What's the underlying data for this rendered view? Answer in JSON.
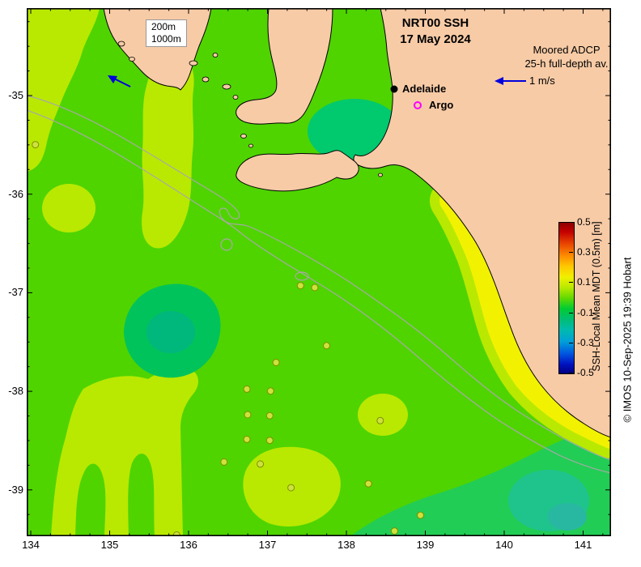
{
  "title": {
    "line1": "NRT00 SSH",
    "line2": "17 May 2024"
  },
  "annotations": {
    "adcp_line1": "Moored ADCP",
    "adcp_line2": "25-h full-depth av.",
    "speed_label": "1 m/s",
    "adelaide_label": "Adelaide",
    "argo_label": "Argo",
    "contour_labels": [
      "200m",
      "1000m"
    ]
  },
  "colorbar": {
    "title": "SSH-Local Mean MDT (0.5m) [m]",
    "ticks": [
      "0.5",
      "0.3",
      "0.1",
      "-0.1",
      "-0.3",
      "-0.5"
    ]
  },
  "axes": {
    "x_ticks": [
      "134",
      "135",
      "136",
      "137",
      "138",
      "139",
      "140",
      "141"
    ],
    "y_ticks": [
      "-35",
      "-36",
      "-37",
      "-38",
      "-39"
    ]
  },
  "copyright": "© IMOS 10-Sep-2025 19:39 Hobart",
  "colors": {
    "land": "#f7cba6",
    "ocean_base": "#4fd400",
    "ocean_high_yellow": "#f2f200",
    "ocean_yellow_green": "#b9e900",
    "ocean_low_green": "#00c35c",
    "coastline": "#000000",
    "bathy_contour": "#a8a8a8",
    "vector_arrow": "#0000dd",
    "argo_marker": "#ff00ff"
  },
  "observations": [
    {
      "lon": 134.06,
      "lat": -35.5
    },
    {
      "lon": 137.42,
      "lat": -36.93
    },
    {
      "lon": 137.6,
      "lat": -36.95
    },
    {
      "lon": 137.75,
      "lat": -37.54
    },
    {
      "lon": 137.11,
      "lat": -37.71
    },
    {
      "lon": 136.74,
      "lat": -37.98
    },
    {
      "lon": 137.04,
      "lat": -38.0
    },
    {
      "lon": 136.75,
      "lat": -38.24
    },
    {
      "lon": 137.03,
      "lat": -38.25
    },
    {
      "lon": 136.74,
      "lat": -38.49
    },
    {
      "lon": 137.03,
      "lat": -38.5
    },
    {
      "lon": 136.91,
      "lat": -38.74
    },
    {
      "lon": 136.45,
      "lat": -38.72
    },
    {
      "lon": 137.3,
      "lat": -38.98
    },
    {
      "lon": 138.28,
      "lat": -38.94
    },
    {
      "lon": 138.43,
      "lat": -38.3
    },
    {
      "lon": 138.94,
      "lat": -39.26
    },
    {
      "lon": 135.85,
      "lat": -39.46
    },
    {
      "lon": 138.61,
      "lat": -39.42
    }
  ]
}
